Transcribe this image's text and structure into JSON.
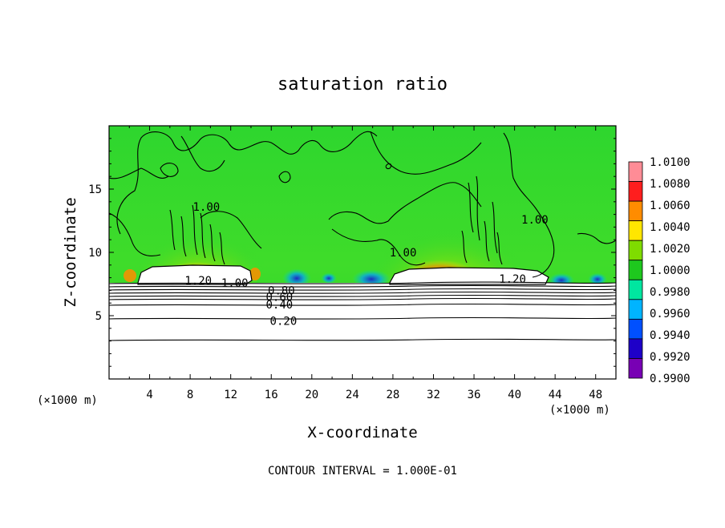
{
  "chart_data": {
    "type": "heatmap",
    "title": "saturation ratio",
    "xlabel": "X-coordinate",
    "ylabel": "Z-coordinate",
    "x_unit_left": "(×1000 m)",
    "x_unit_right": "(×1000 m)",
    "footer": "CONTOUR INTERVAL = 1.000E-01",
    "xlim": [
      0,
      50
    ],
    "ylim": [
      0,
      20
    ],
    "x_ticks": [
      "4",
      "8",
      "12",
      "16",
      "20",
      "24",
      "28",
      "32",
      "36",
      "40",
      "44",
      "48"
    ],
    "x_tick_values": [
      4,
      8,
      12,
      16,
      20,
      24,
      28,
      32,
      36,
      40,
      44,
      48
    ],
    "y_ticks": [
      "5",
      "10",
      "15"
    ],
    "y_tick_values": [
      5,
      10,
      15
    ],
    "colorbar": {
      "labels": [
        "1.0100",
        "1.0080",
        "1.0060",
        "1.0040",
        "1.0020",
        "1.0000",
        "0.9980",
        "0.9960",
        "0.9940",
        "0.9920",
        "0.9900"
      ],
      "values": [
        1.01,
        1.008,
        1.006,
        1.004,
        1.002,
        1.0,
        0.998,
        0.996,
        0.994,
        0.992,
        0.99
      ],
      "colors": [
        "#ff8c96",
        "#ff1e1e",
        "#ff8c00",
        "#ffe600",
        "#7fdc00",
        "#1ec81e",
        "#00e6a0",
        "#00b4ff",
        "#0050ff",
        "#1e00c8",
        "#7800b4"
      ]
    },
    "contour_labels": [
      {
        "text": "1.20",
        "x": 8.8,
        "z": 7.8
      },
      {
        "text": "1.00",
        "x": 12.4,
        "z": 7.6
      },
      {
        "text": "0.80",
        "x": 17.0,
        "z": 7.0
      },
      {
        "text": "0.60",
        "x": 16.8,
        "z": 6.5
      },
      {
        "text": "0.40",
        "x": 16.8,
        "z": 5.9
      },
      {
        "text": "0.20",
        "x": 17.2,
        "z": 4.6
      },
      {
        "text": "1.20",
        "x": 39.8,
        "z": 7.9
      },
      {
        "text": "1.00",
        "x": 9.6,
        "z": 13.6
      },
      {
        "text": "1.00",
        "x": 29.0,
        "z": 10.0
      },
      {
        "text": "1.00",
        "x": 42.0,
        "z": 12.6
      }
    ],
    "grid": false
  }
}
